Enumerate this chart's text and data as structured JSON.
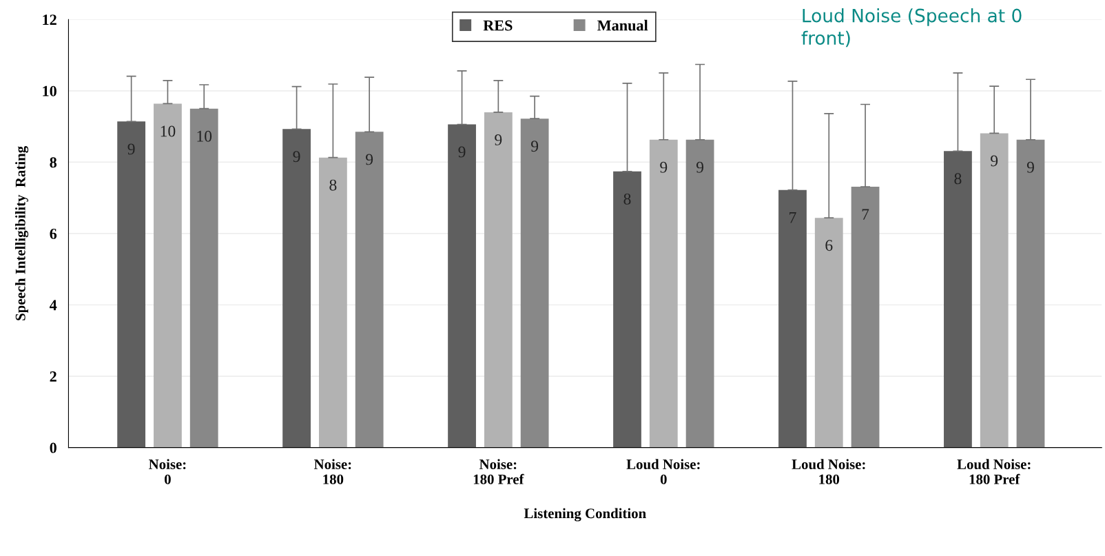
{
  "chart_data": {
    "type": "bar",
    "xlabel": "Listening Condition",
    "ylabel": "Speech Intelligibility  Rating",
    "categories": [
      "Noise:\n0",
      "Noise:\n180",
      "Noise:\n180 Pref",
      "Loud Noise:\n0",
      "Loud Noise:\n180",
      "Loud Noise:\n180 Pref"
    ],
    "series": [
      {
        "name": "RES",
        "color": "#5f5f5f",
        "values": [
          9.14,
          8.93,
          9.06,
          7.74,
          7.22,
          8.31
        ],
        "value_labels": [
          "9",
          "9",
          "9",
          "8",
          "7",
          "8"
        ],
        "errors": [
          [
            9.14,
            10.41
          ],
          [
            8.93,
            10.12
          ],
          [
            9.06,
            10.56
          ],
          [
            7.74,
            10.21
          ],
          [
            7.22,
            10.27
          ],
          [
            8.31,
            10.5
          ]
        ]
      },
      {
        "color": "#b2b2b2",
        "values": [
          9.64,
          8.13,
          9.4,
          8.63,
          6.44,
          8.81
        ],
        "value_labels": [
          "10",
          "8",
          "9",
          "9",
          "6",
          "9"
        ],
        "errors": [
          [
            9.64,
            10.29
          ],
          [
            8.13,
            10.19
          ],
          [
            9.4,
            10.29
          ],
          [
            8.63,
            10.5
          ],
          [
            6.44,
            9.36
          ],
          [
            8.81,
            10.13
          ]
        ]
      },
      {
        "name": "Manual",
        "color": "#888888",
        "values": [
          9.5,
          8.85,
          9.22,
          8.63,
          7.31,
          8.63
        ],
        "value_labels": [
          "10",
          "9",
          "9",
          "9",
          "7",
          "9"
        ],
        "errors": [
          [
            9.5,
            10.17
          ],
          [
            8.85,
            10.38
          ],
          [
            9.22,
            9.85
          ],
          [
            8.63,
            10.74
          ],
          [
            7.31,
            9.62
          ],
          [
            8.63,
            10.32
          ]
        ]
      }
    ],
    "ylim": [
      0,
      12
    ],
    "yticks": [
      0,
      2,
      4,
      6,
      8,
      10,
      12
    ],
    "grid": "y",
    "legend": "top",
    "annotations": [
      "Loud Noise (Speech at 0\nfront)"
    ]
  }
}
